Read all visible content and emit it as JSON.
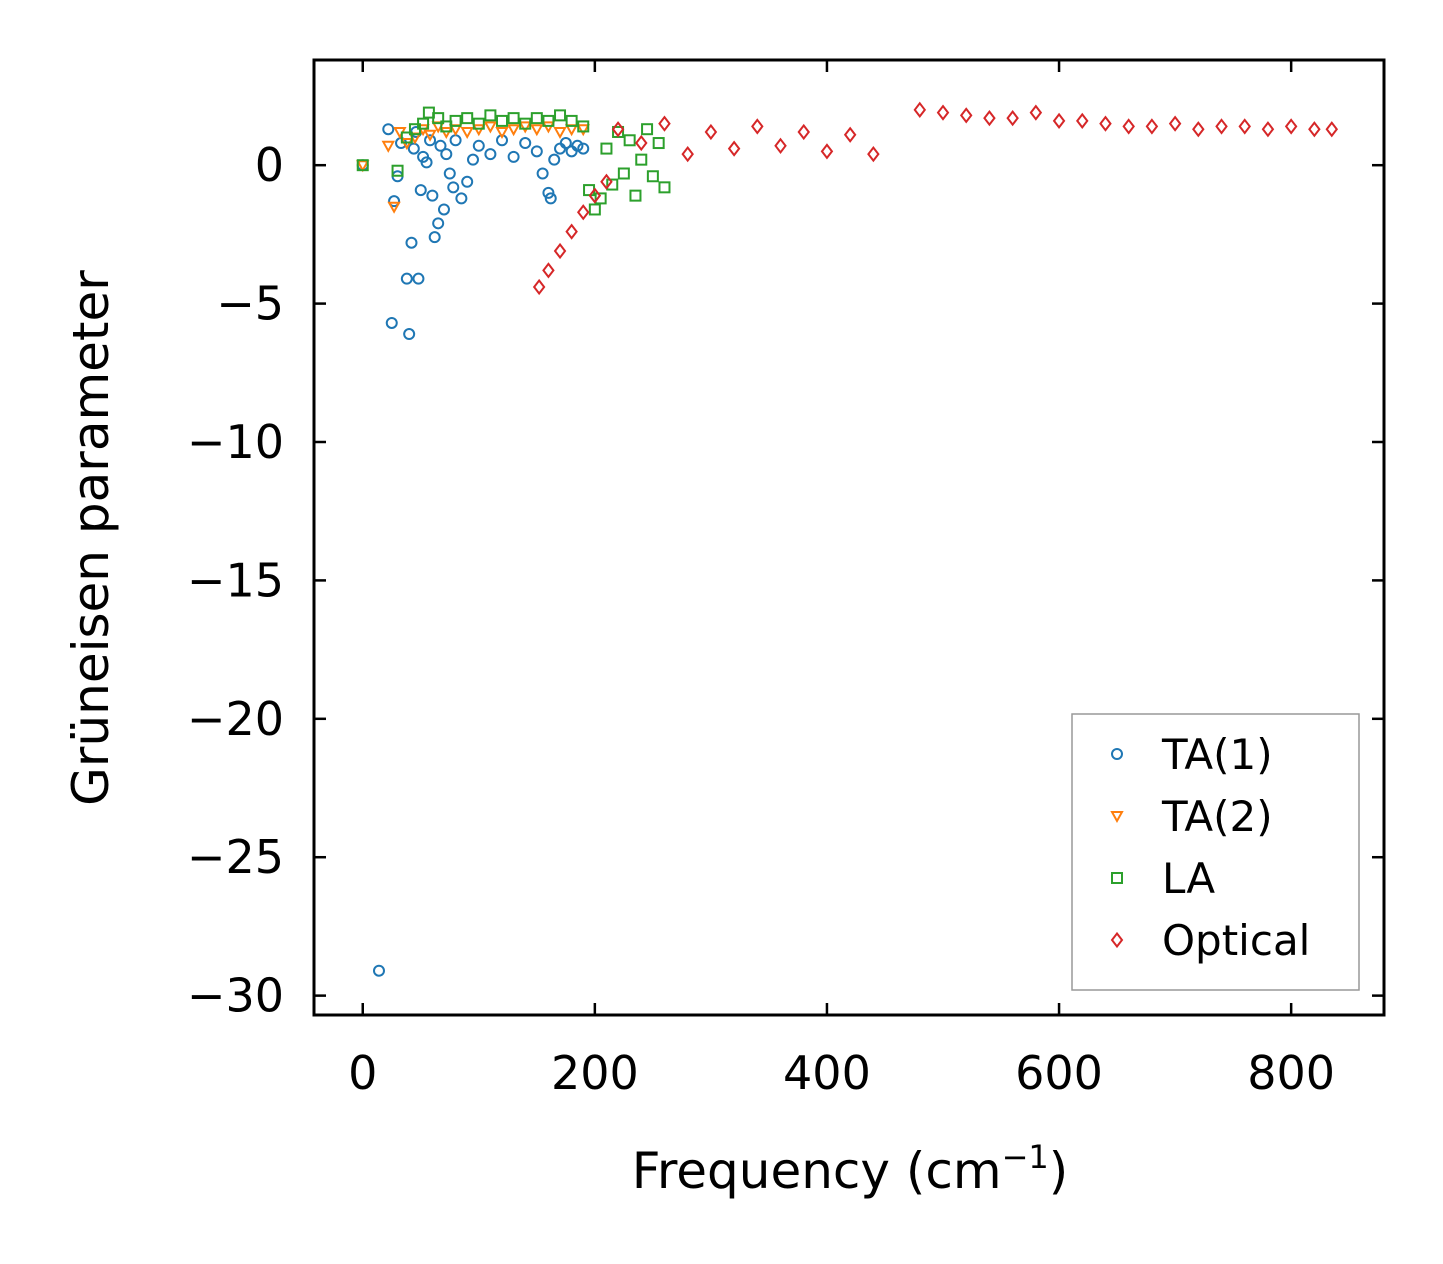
{
  "chart_data": {
    "type": "scatter",
    "title": "",
    "xlabel": "Frequency (cm",
    "xlabel_sup": "−1",
    "xlabel_end": ")",
    "ylabel": "Grüneisen parameter",
    "xlim": [
      -42,
      880
    ],
    "ylim": [
      -30.7,
      3.8
    ],
    "xticks": [
      0,
      200,
      400,
      600,
      800
    ],
    "xtick_labels": [
      "0",
      "200",
      "400",
      "600",
      "800"
    ],
    "yticks": [
      0,
      -5,
      -10,
      -15,
      -20,
      -25,
      -30
    ],
    "ytick_labels": [
      "0",
      "−5",
      "−10",
      "−15",
      "−20",
      "−25",
      "−30"
    ],
    "grid": false,
    "legend_position": "lower-right",
    "series": [
      {
        "name": "TA(1)",
        "marker": "circle",
        "color": "#1f77b4",
        "x": [
          0,
          14,
          22,
          25,
          27,
          30,
          33,
          38,
          40,
          42,
          44,
          46,
          48,
          50,
          52,
          55,
          58,
          60,
          62,
          65,
          67,
          70,
          72,
          75,
          78,
          80,
          85,
          90,
          95,
          100,
          110,
          120,
          130,
          140,
          150,
          155,
          160,
          162,
          165,
          170,
          175,
          180,
          185,
          190
        ],
        "y": [
          0,
          -29.1,
          1.3,
          -5.7,
          -1.3,
          -0.4,
          0.8,
          -4.1,
          -6.1,
          -2.8,
          0.6,
          1.2,
          -4.1,
          -0.9,
          0.3,
          0.1,
          0.9,
          -1.1,
          -2.6,
          -2.1,
          0.7,
          -1.6,
          0.4,
          -0.3,
          -0.8,
          0.9,
          -1.2,
          -0.6,
          0.2,
          0.7,
          0.4,
          0.9,
          0.3,
          0.8,
          0.5,
          -0.3,
          -1.0,
          -1.2,
          0.2,
          0.6,
          0.8,
          0.5,
          0.7,
          0.6
        ]
      },
      {
        "name": "TA(2)",
        "marker": "triangle-down",
        "color": "#ff7f0e",
        "x": [
          0,
          22,
          27,
          32,
          38,
          45,
          52,
          58,
          65,
          72,
          80,
          90,
          100,
          110,
          120,
          130,
          140,
          150,
          160,
          170,
          180,
          190
        ],
        "y": [
          0,
          0.7,
          -1.5,
          1.2,
          0.8,
          1.0,
          1.3,
          1.1,
          1.4,
          1.2,
          1.3,
          1.2,
          1.3,
          1.4,
          1.2,
          1.3,
          1.4,
          1.3,
          1.4,
          1.2,
          1.3,
          1.3
        ]
      },
      {
        "name": "LA",
        "marker": "square",
        "color": "#2ca02c",
        "x": [
          0,
          30,
          38,
          45,
          52,
          57,
          65,
          72,
          80,
          90,
          100,
          110,
          120,
          130,
          140,
          150,
          160,
          170,
          180,
          190,
          195,
          200,
          205,
          210,
          215,
          220,
          225,
          230,
          235,
          240,
          245,
          250,
          255,
          260
        ],
        "y": [
          0,
          -0.2,
          1.0,
          1.3,
          1.5,
          1.9,
          1.7,
          1.4,
          1.6,
          1.7,
          1.5,
          1.8,
          1.6,
          1.7,
          1.5,
          1.7,
          1.6,
          1.8,
          1.6,
          1.4,
          -0.9,
          -1.6,
          -1.2,
          0.6,
          -0.7,
          1.2,
          -0.3,
          0.9,
          -1.1,
          0.2,
          1.3,
          -0.4,
          0.8,
          -0.8
        ]
      },
      {
        "name": "Optical",
        "marker": "diamond",
        "color": "#d62728",
        "x": [
          152,
          160,
          170,
          180,
          190,
          200,
          210,
          220,
          240,
          260,
          280,
          300,
          320,
          340,
          360,
          380,
          400,
          420,
          440,
          480,
          500,
          520,
          540,
          560,
          580,
          600,
          620,
          640,
          660,
          680,
          700,
          720,
          740,
          760,
          780,
          800,
          820,
          835
        ],
        "y": [
          -4.4,
          -3.8,
          -3.1,
          -2.4,
          -1.7,
          -1.1,
          -0.6,
          1.3,
          0.8,
          1.5,
          0.4,
          1.2,
          0.6,
          1.4,
          0.7,
          1.2,
          0.5,
          1.1,
          0.4,
          2.0,
          1.9,
          1.8,
          1.7,
          1.7,
          1.9,
          1.6,
          1.6,
          1.5,
          1.4,
          1.4,
          1.5,
          1.3,
          1.4,
          1.4,
          1.3,
          1.4,
          1.3,
          1.3
        ]
      }
    ]
  }
}
